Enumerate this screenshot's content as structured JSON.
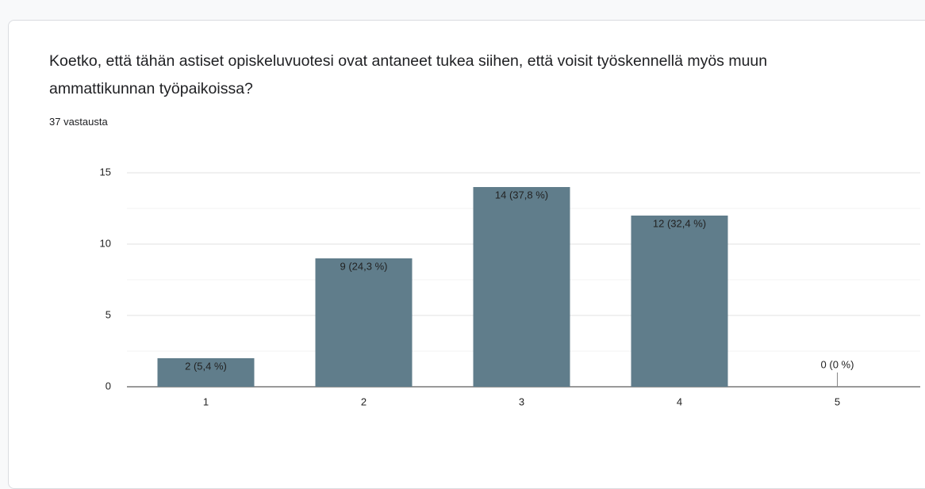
{
  "chart_data": {
    "type": "bar",
    "title": "Koetko, että tähän astiset opiskeluvuotesi ovat antaneet tukea siihen, että voisit työskennellä myös muun ammattikunnan työpaikoissa?",
    "subtitle": "37 vastausta",
    "categories": [
      "1",
      "2",
      "3",
      "4",
      "5"
    ],
    "values": [
      2,
      9,
      14,
      12,
      0
    ],
    "value_labels": [
      "2 (5,4 %)",
      "9 (24,3 %)",
      "14 (37,8 %)",
      "12 (32,4 %)",
      "0 (0 %)"
    ],
    "color": "#607d8b",
    "ylim": [
      0,
      15
    ],
    "yticks": [
      0,
      5,
      10,
      15
    ],
    "minor_yticks": [
      2.5,
      7.5,
      12.5
    ],
    "grid": true
  }
}
